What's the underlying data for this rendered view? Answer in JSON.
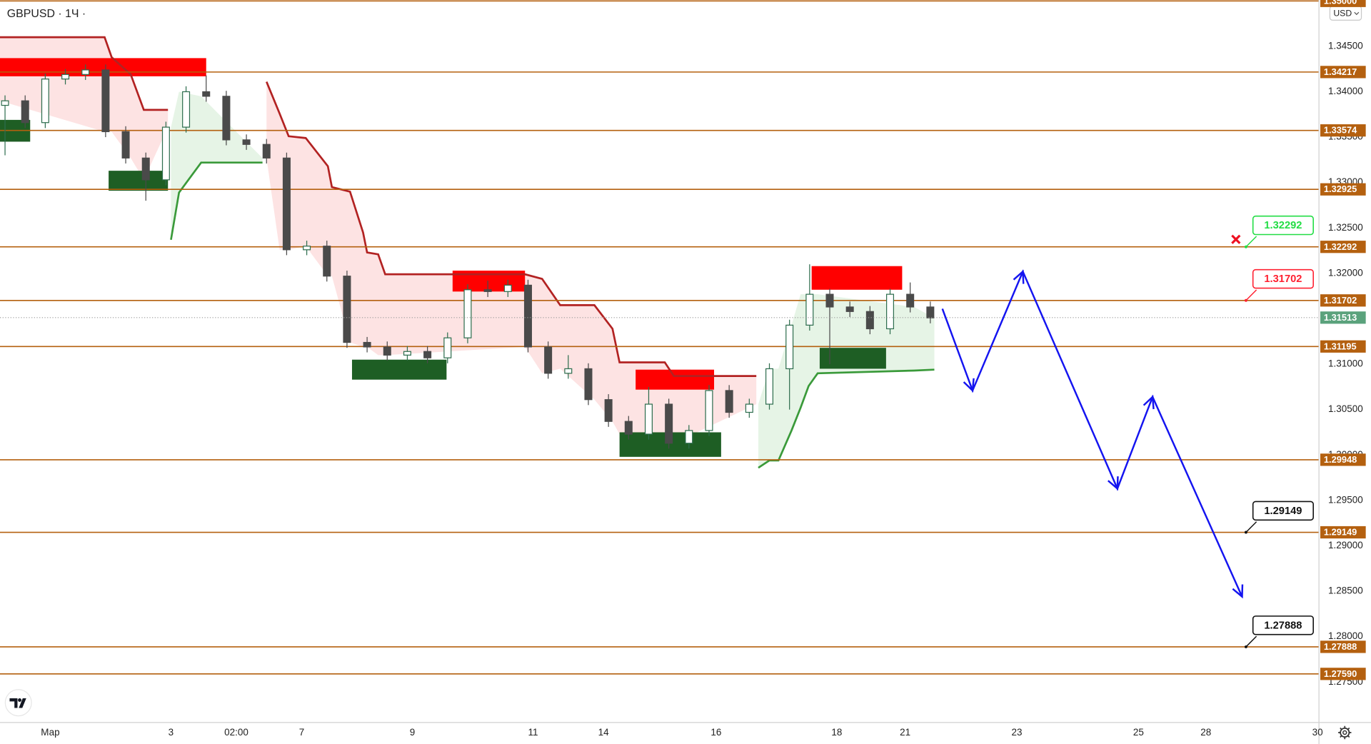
{
  "chart_data": {
    "type": "candlestick",
    "title": "GBPUSD · 1Ч ·",
    "currency": "USD",
    "up_color": "#2f6e4f",
    "down_color": "#4a4a4a",
    "x": [
      0.5,
      2.5,
      4.5,
      6.5,
      8.5,
      10.5,
      12.5,
      14.5,
      16.5,
      18.5,
      20.5,
      22.5,
      24.5,
      26.5,
      28.5,
      30.5,
      32.5,
      34.5,
      36.5,
      38.5,
      40.5,
      42.5,
      44.5,
      46.5,
      48.5,
      50.5,
      52.5,
      54.5,
      56.5,
      58.5,
      60.5,
      62.5,
      64.5,
      66.5,
      68.5,
      70.5,
      72.5,
      74.5,
      76.5,
      78.5,
      80.5,
      82.5,
      84.5,
      86.5,
      88.5,
      90.5,
      92.5
    ],
    "open": [
      1.3385,
      1.339,
      1.3366,
      1.3414,
      1.3419,
      1.3424,
      1.3356,
      1.3327,
      1.3303,
      1.3361,
      1.34,
      1.3395,
      1.3347,
      1.3342,
      1.3327,
      1.3226,
      1.323,
      1.3197,
      1.3124,
      1.3119,
      1.311,
      1.3114,
      1.3107,
      1.3129,
      1.3182,
      1.318,
      1.3187,
      1.3119,
      1.309,
      1.3095,
      1.3061,
      1.3037,
      1.3023,
      1.3056,
      1.3013,
      1.3027,
      1.3071,
      1.3047,
      1.3056,
      1.3095,
      1.3143,
      1.3177,
      1.3163,
      1.3158,
      1.3139,
      1.3177,
      1.3163
    ],
    "high": [
      1.3396,
      1.3396,
      1.342,
      1.3425,
      1.343,
      1.343,
      1.3362,
      1.3333,
      1.3367,
      1.3406,
      1.3418,
      1.3401,
      1.3353,
      1.3348,
      1.3333,
      1.3236,
      1.3236,
      1.3203,
      1.313,
      1.3125,
      1.312,
      1.312,
      1.3135,
      1.3188,
      1.3192,
      1.3193,
      1.3193,
      1.3125,
      1.311,
      1.3101,
      1.3067,
      1.3043,
      1.3075,
      1.3062,
      1.3033,
      1.3077,
      1.3077,
      1.3062,
      1.3101,
      1.3149,
      1.321,
      1.3183,
      1.3169,
      1.3164,
      1.3183,
      1.319,
      1.3169
    ],
    "low": [
      1.333,
      1.336,
      1.336,
      1.3408,
      1.3413,
      1.335,
      1.3321,
      1.328,
      1.3297,
      1.3355,
      1.3389,
      1.3341,
      1.3336,
      1.3321,
      1.322,
      1.322,
      1.3191,
      1.3118,
      1.3113,
      1.3104,
      1.3104,
      1.3101,
      1.3101,
      1.3123,
      1.3174,
      1.3174,
      1.3113,
      1.3084,
      1.3084,
      1.3055,
      1.3031,
      1.3017,
      1.3017,
      1.3007,
      1.3007,
      1.3021,
      1.3041,
      1.3041,
      1.305,
      1.305,
      1.3137,
      1.31,
      1.3152,
      1.3133,
      1.3133,
      1.3157,
      1.3145
    ],
    "close": [
      1.339,
      1.3366,
      1.3414,
      1.3419,
      1.3424,
      1.3356,
      1.3327,
      1.3303,
      1.3361,
      1.34,
      1.3395,
      1.3347,
      1.3342,
      1.3327,
      1.3226,
      1.323,
      1.3197,
      1.3124,
      1.3119,
      1.311,
      1.3114,
      1.3107,
      1.3129,
      1.3182,
      1.318,
      1.3187,
      1.3119,
      1.309,
      1.3095,
      1.3061,
      1.3037,
      1.3023,
      1.3056,
      1.3013,
      1.3027,
      1.3071,
      1.3047,
      1.3056,
      1.3095,
      1.3143,
      1.3177,
      1.3163,
      1.3158,
      1.3139,
      1.3177,
      1.3163,
      1.3151
    ],
    "xlim": [
      0,
      131.1
    ],
    "xticks": [
      {
        "value": 5,
        "label": "Мар"
      },
      {
        "value": 17,
        "label": "3"
      },
      {
        "value": 23.5,
        "label": "02:00"
      },
      {
        "value": 30,
        "label": "7"
      },
      {
        "value": 41,
        "label": "9"
      },
      {
        "value": 53,
        "label": "11"
      },
      {
        "value": 60,
        "label": "14"
      },
      {
        "value": 71.2,
        "label": "16"
      },
      {
        "value": 83.2,
        "label": "18"
      },
      {
        "value": 90,
        "label": "21"
      },
      {
        "value": 101.1,
        "label": "23"
      },
      {
        "value": 113.2,
        "label": "25"
      },
      {
        "value": 119.9,
        "label": "28"
      },
      {
        "value": 131,
        "label": "30"
      }
    ],
    "ylim": [
      1.2706,
      1.3501
    ],
    "yticks": [
      {
        "value": 1.345,
        "label": "1.34500"
      },
      {
        "value": 1.34,
        "label": "1.34000"
      },
      {
        "value": 1.335,
        "label": "1.33500"
      },
      {
        "value": 1.33,
        "label": "1.33000"
      },
      {
        "value": 1.325,
        "label": "1.32500"
      },
      {
        "value": 1.32,
        "label": "1.32000"
      },
      {
        "value": 1.315,
        "label": "1.31500"
      },
      {
        "value": 1.31,
        "label": "1.31000"
      },
      {
        "value": 1.305,
        "label": "1.30500"
      },
      {
        "value": 1.3,
        "label": "1.30000"
      },
      {
        "value": 1.295,
        "label": "1.29500"
      },
      {
        "value": 1.29,
        "label": "1.29000"
      },
      {
        "value": 1.285,
        "label": "1.28500"
      },
      {
        "value": 1.28,
        "label": "1.28000"
      },
      {
        "value": 1.275,
        "label": "1.27500"
      }
    ],
    "levels": {
      "color": "#b4600f",
      "values": [
        {
          "value": 1.35,
          "label": "1.35000"
        },
        1.34217,
        1.33574,
        1.32925,
        1.32292,
        1.31702,
        1.31195,
        1.29948,
        1.29149,
        1.27888,
        {
          "value": 1.2759,
          "label": "1.27590"
        }
      ]
    },
    "zones": [
      {
        "color": "#ff0000",
        "x": [
          0,
          20.5
        ],
        "y": [
          1.3417,
          1.3437
        ]
      },
      {
        "color": "#ff0000",
        "x": [
          45,
          52.2
        ],
        "y": [
          1.318,
          1.3203
        ]
      },
      {
        "color": "#ff0000",
        "x": [
          63.2,
          71
        ],
        "y": [
          1.3072,
          1.3094
        ]
      },
      {
        "color": "#ff0000",
        "x": [
          80.7,
          89.7
        ],
        "y": [
          1.3182,
          1.3208
        ]
      },
      {
        "color": "#1e5e24",
        "x": [
          0,
          3
        ],
        "y": [
          1.3345,
          1.3369
        ]
      },
      {
        "color": "#1e5e24",
        "x": [
          10.8,
          16.7
        ],
        "y": [
          1.3291,
          1.3313
        ]
      },
      {
        "color": "#1e5e24",
        "x": [
          35,
          44.4
        ],
        "y": [
          1.3083,
          1.3105
        ]
      },
      {
        "color": "#1e5e24",
        "x": [
          61.6,
          71.7
        ],
        "y": [
          1.2998,
          1.3025
        ]
      },
      {
        "color": "#1e5e24",
        "x": [
          81.5,
          88.1
        ],
        "y": [
          1.3095,
          1.3118
        ]
      }
    ],
    "trend_down": {
      "color": "#b22222",
      "fill": "#fde3e3",
      "x": [
        0,
        10.4,
        11.1,
        13.0,
        14.3,
        16.7,
        20,
        26.5,
        27.8,
        28.7,
        30.4,
        32.6,
        33.0,
        34.8,
        36.1,
        36.5,
        37.6,
        38.3,
        52.2,
        53.9,
        55.7,
        59.1,
        60.9,
        61.6,
        66.1,
        67.0,
        75.2
      ],
      "values": [
        1.346,
        1.346,
        1.3438,
        1.3419,
        1.338,
        1.338,
        null,
        1.3411,
        1.3376,
        1.3351,
        1.3349,
        1.3318,
        1.3295,
        1.329,
        1.3245,
        1.3223,
        1.3221,
        1.3199,
        1.3199,
        1.3194,
        1.3165,
        1.3165,
        1.3139,
        1.3102,
        1.3102,
        1.3087,
        1.3087
      ]
    },
    "trend_up": {
      "color": "#3a9a3a",
      "fill": "#e6f4e6",
      "x": [
        17.0,
        17.8,
        20.0,
        26.1,
        50,
        75.4,
        76.5,
        77.4,
        78.7,
        79.6,
        80.4,
        81.3,
        90.9,
        92.9
      ],
      "values": [
        1.3237,
        1.3289,
        1.3322,
        1.3322,
        null,
        1.2986,
        1.2994,
        1.2994,
        1.3027,
        1.3052,
        1.3076,
        1.309,
        1.3093,
        1.3094
      ]
    },
    "projection": {
      "color": "#1414f0",
      "x": [
        93.7,
        96.7,
        101.7,
        111.1,
        114.6,
        123.5
      ],
      "values": [
        1.3161,
        1.3071,
        1.3202,
        1.2963,
        1.3064,
        1.2844
      ]
    },
    "last_price": {
      "value": 1.31513,
      "color": "#5aa27c"
    },
    "callouts": [
      {
        "value": 1.32292,
        "color": "#22dd44"
      },
      {
        "value": 1.31702,
        "color": "#ff2030"
      },
      {
        "value": 1.29149,
        "color": "#111111"
      },
      {
        "value": 1.27888,
        "color": "#111111"
      }
    ]
  }
}
